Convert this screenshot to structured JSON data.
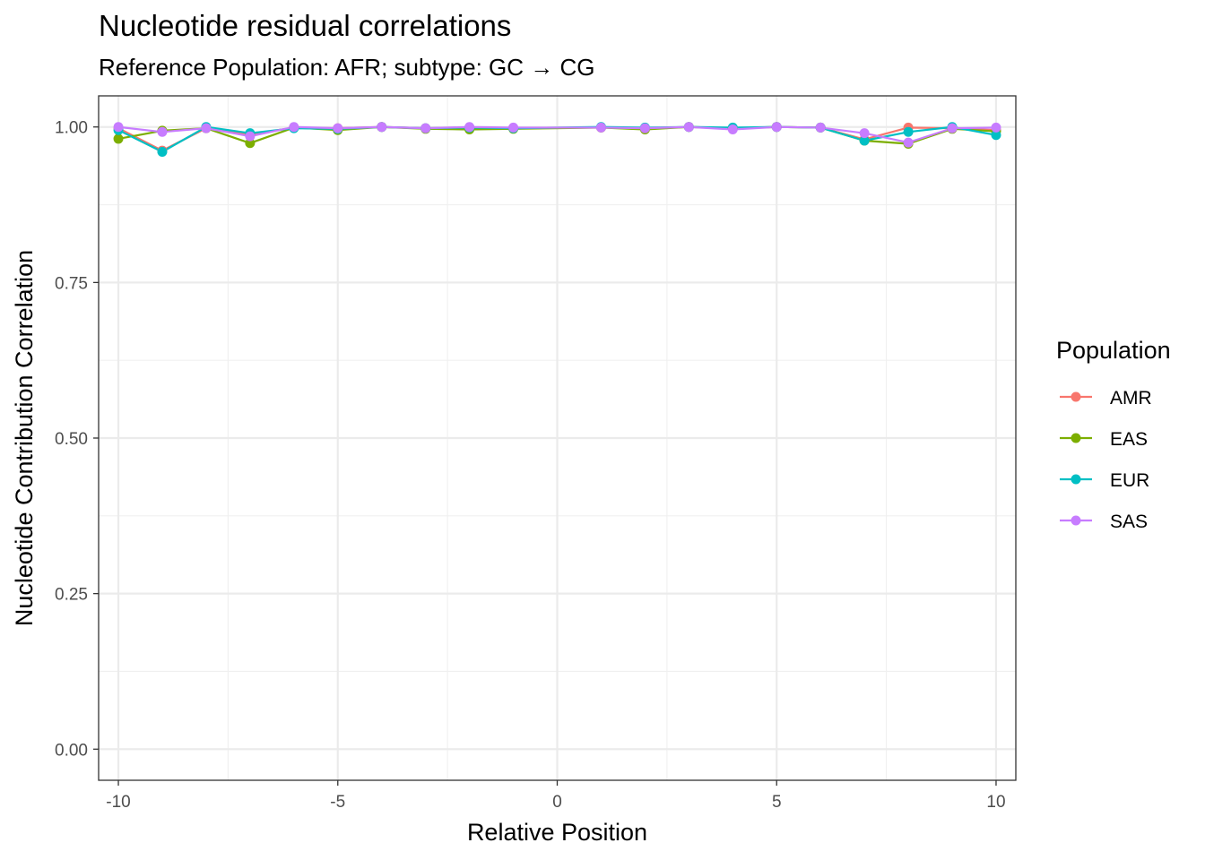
{
  "chart_data": {
    "type": "line",
    "title": "Nucleotide residual correlations",
    "subtitle": "Reference Population: AFR; subtype: GC → CG",
    "xlabel": "Relative Position",
    "ylabel": "Nucleotide Contribution Correlation",
    "xlim": [
      -10.45,
      10.45
    ],
    "ylim": [
      -0.05,
      1.05
    ],
    "x_ticks": [
      -10,
      -5,
      0,
      5,
      10
    ],
    "x_tick_labels": [
      "-10",
      "-5",
      "0",
      "5",
      "10"
    ],
    "y_ticks": [
      0,
      0.25,
      0.5,
      0.75,
      1
    ],
    "y_tick_labels": [
      "0.00",
      "0.25",
      "0.50",
      "0.75",
      "1.00"
    ],
    "grid": true,
    "legend_title": "Population",
    "legend_position": "right",
    "x": [
      -10,
      -9,
      -8,
      -7,
      -6,
      -5,
      -4,
      -3,
      -2,
      -1,
      1,
      2,
      3,
      4,
      5,
      6,
      7,
      8,
      9,
      10
    ],
    "series": [
      {
        "name": "AMR",
        "color": "#F8766D",
        "values": [
          0.998,
          0.962,
          0.998,
          0.988,
          0.999,
          0.998,
          1.0,
          0.998,
          0.999,
          0.998,
          0.999,
          0.998,
          1.0,
          0.998,
          1.0,
          0.999,
          0.98,
          0.999,
          0.998,
          0.995
        ]
      },
      {
        "name": "EAS",
        "color": "#7CAE00",
        "values": [
          0.981,
          0.994,
          0.998,
          0.974,
          0.999,
          0.995,
          1.0,
          0.997,
          0.996,
          0.997,
          0.999,
          0.996,
          1.0,
          0.998,
          1.0,
          0.999,
          0.978,
          0.973,
          0.997,
          0.993
        ]
      },
      {
        "name": "EUR",
        "color": "#00BFC4",
        "values": [
          0.995,
          0.96,
          1.0,
          0.99,
          0.998,
          0.997,
          1.0,
          0.998,
          0.999,
          0.998,
          1.0,
          0.999,
          1.0,
          0.999,
          1.0,
          0.999,
          0.978,
          0.992,
          1.0,
          0.987
        ]
      },
      {
        "name": "SAS",
        "color": "#C77CFF",
        "values": [
          1.0,
          0.992,
          0.998,
          0.985,
          1.0,
          0.998,
          1.0,
          0.998,
          1.0,
          0.999,
          0.999,
          0.998,
          1.0,
          0.996,
          1.0,
          0.999,
          0.99,
          0.975,
          0.998,
          0.999
        ]
      }
    ]
  }
}
